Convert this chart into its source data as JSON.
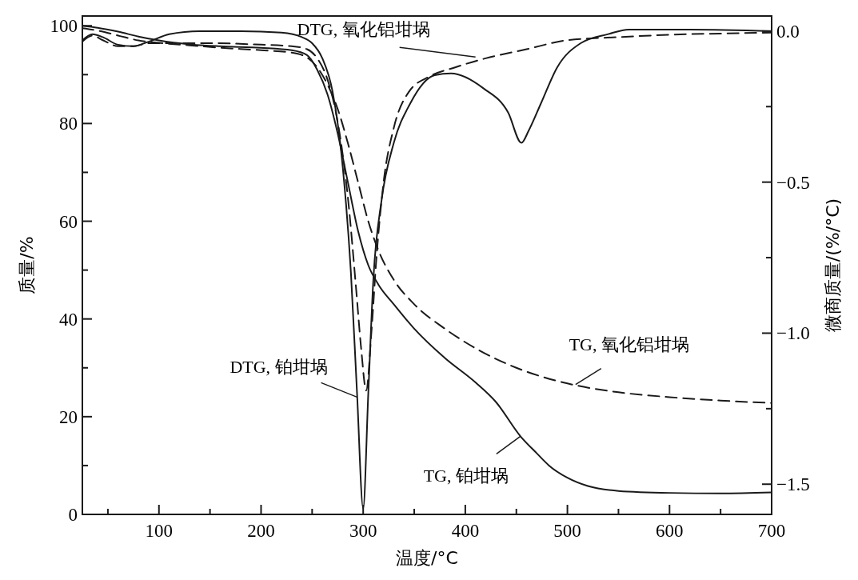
{
  "chart_data": {
    "type": "line",
    "xlabel": "温度/°C",
    "ylabel": "质量/%",
    "y2label": "微商质量/(%/°C)",
    "xlim": [
      25,
      700
    ],
    "ylim": [
      0,
      102
    ],
    "y2lim": [
      -1.6,
      0.05
    ],
    "xticks": [
      {
        "value": 50,
        "label": null
      },
      100,
      {
        "value": 150,
        "label": null
      },
      200,
      {
        "value": 250,
        "label": null
      },
      300,
      {
        "value": 350,
        "label": null
      },
      400,
      {
        "value": 450,
        "label": null
      },
      500,
      {
        "value": 550,
        "label": null
      },
      600,
      {
        "value": 650,
        "label": null
      },
      700
    ],
    "yticks": [
      0,
      {
        "value": 10,
        "label": null
      },
      20,
      {
        "value": 30,
        "label": null
      },
      40,
      {
        "value": 50,
        "label": null
      },
      60,
      {
        "value": 70,
        "label": null
      },
      80,
      {
        "value": 90,
        "label": null
      },
      100
    ],
    "y2ticks": [
      {
        "value": 0,
        "label": "0.0"
      },
      {
        "value": -0.25,
        "label": null
      },
      {
        "value": -0.5,
        "label": "−0.5"
      },
      {
        "value": -0.75,
        "label": null
      },
      {
        "value": -1,
        "label": "−1.0"
      },
      {
        "value": -1.25,
        "label": null
      },
      {
        "value": -1.5,
        "label": "−1.5"
      }
    ],
    "grid": false,
    "series": [
      {
        "color": "#1a1a1a",
        "line_style": "solid",
        "x": [
          25,
          40,
          60,
          80,
          100,
          130,
          160,
          200,
          230,
          245,
          255,
          265,
          275,
          285,
          295,
          305,
          315,
          330,
          350,
          380,
          410,
          430,
          454,
          470,
          482,
          500,
          520,
          550,
          600,
          650,
          700
        ],
        "values": [
          100,
          99.6,
          98.8,
          97.8,
          97,
          96.2,
          95.8,
          95.5,
          95,
          94,
          91,
          86,
          78,
          68,
          58,
          51,
          47,
          43,
          38,
          32,
          27,
          23,
          16,
          12.5,
          10,
          7.5,
          5.8,
          4.8,
          4.4,
          4.3,
          4.5
        ]
      },
      {
        "color": "#1a1a1a",
        "line_style": "dashed",
        "x": [
          25,
          40,
          60,
          80,
          100,
          130,
          160,
          200,
          230,
          245,
          255,
          265,
          275,
          285,
          295,
          305,
          315,
          330,
          350,
          380,
          410,
          450,
          500,
          550,
          600,
          650,
          700
        ],
        "values": [
          99.5,
          99,
          98,
          97,
          96.5,
          96,
          95.5,
          95,
          94.5,
          93.5,
          91.5,
          88,
          83,
          76,
          68,
          60,
          54,
          48,
          43,
          38,
          34,
          30,
          26.8,
          25,
          24,
          23.3,
          22.8
        ]
      },
      {
        "axis": "y2",
        "color": "#1a1a1a",
        "line_style": "solid",
        "x": [
          25,
          35,
          45,
          60,
          75,
          90,
          110,
          140,
          180,
          220,
          240,
          250,
          260,
          270,
          280,
          288,
          294,
          300,
          305,
          310,
          318,
          330,
          346,
          370,
          386,
          418,
          442,
          455,
          462,
          474,
          490,
          513,
          540,
          560,
          620,
          700
        ],
        "values": [
          -0.03,
          -0.01,
          -0.02,
          -0.045,
          -0.05,
          -0.035,
          -0.01,
          0,
          0,
          -0.005,
          -0.02,
          -0.04,
          -0.09,
          -0.2,
          -0.45,
          -0.8,
          -1.2,
          -1.58,
          -1.2,
          -0.82,
          -0.56,
          -0.37,
          -0.24,
          -0.146,
          -0.14,
          -0.19,
          -0.27,
          -0.37,
          -0.33,
          -0.24,
          -0.12,
          -0.04,
          -0.01,
          0.005,
          0.005,
          0
        ]
      },
      {
        "axis": "y2",
        "color": "#1a1a1a",
        "line_style": "dashed",
        "x": [
          25,
          35,
          45,
          60,
          75,
          90,
          110,
          150,
          200,
          230,
          245,
          255,
          265,
          275,
          285,
          293,
          298,
          303,
          308,
          313,
          320,
          330,
          345,
          365,
          390,
          420,
          460,
          500,
          550,
          600,
          650,
          700
        ],
        "values": [
          -0.035,
          -0.015,
          -0.03,
          -0.05,
          -0.05,
          -0.04,
          -0.04,
          -0.04,
          -0.045,
          -0.05,
          -0.06,
          -0.09,
          -0.16,
          -0.3,
          -0.55,
          -0.85,
          -1.05,
          -1.19,
          -1,
          -0.75,
          -0.5,
          -0.32,
          -0.2,
          -0.15,
          -0.12,
          -0.09,
          -0.06,
          -0.03,
          -0.02,
          -0.012,
          -0.008,
          -0.005
        ]
      }
    ],
    "annotations": [
      {
        "text": "DTG, 氧化铝坩埚",
        "x": 410,
        "y": 93.6
      },
      {
        "text": "DTG, 铂坩埚",
        "x": 294,
        "y": 24
      },
      {
        "text": "TG, 氧化铝坩埚",
        "x": 508,
        "y": 26.6
      },
      {
        "text": "TG, 铂坩埚",
        "x": 454,
        "y": 16
      }
    ]
  }
}
